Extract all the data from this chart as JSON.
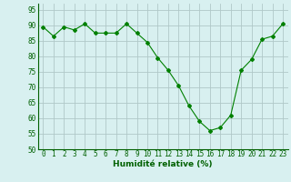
{
  "x": [
    0,
    1,
    2,
    3,
    4,
    5,
    6,
    7,
    8,
    9,
    10,
    11,
    12,
    13,
    14,
    15,
    16,
    17,
    18,
    19,
    20,
    21,
    22,
    23
  ],
  "y": [
    89.5,
    86.5,
    89.5,
    88.5,
    90.5,
    87.5,
    87.5,
    87.5,
    90.5,
    87.5,
    84.5,
    79.5,
    75.5,
    70.5,
    64.0,
    59.0,
    56.0,
    57.0,
    61.0,
    75.5,
    79.0,
    85.5,
    86.5,
    90.5
  ],
  "line_color": "#008000",
  "marker": "D",
  "marker_size": 2.0,
  "bg_color": "#d8f0f0",
  "grid_color": "#b0c8c8",
  "xlabel": "Humidité relative (%)",
  "xlabel_color": "#006000",
  "xlabel_fontsize": 6.5,
  "tick_fontsize": 5.5,
  "ylim": [
    50,
    97
  ],
  "yticks": [
    50,
    55,
    60,
    65,
    70,
    75,
    80,
    85,
    90,
    95
  ],
  "xticks": [
    0,
    1,
    2,
    3,
    4,
    5,
    6,
    7,
    8,
    9,
    10,
    11,
    12,
    13,
    14,
    15,
    16,
    17,
    18,
    19,
    20,
    21,
    22,
    23
  ],
  "tick_color": "#006000",
  "spine_color": "#006000"
}
